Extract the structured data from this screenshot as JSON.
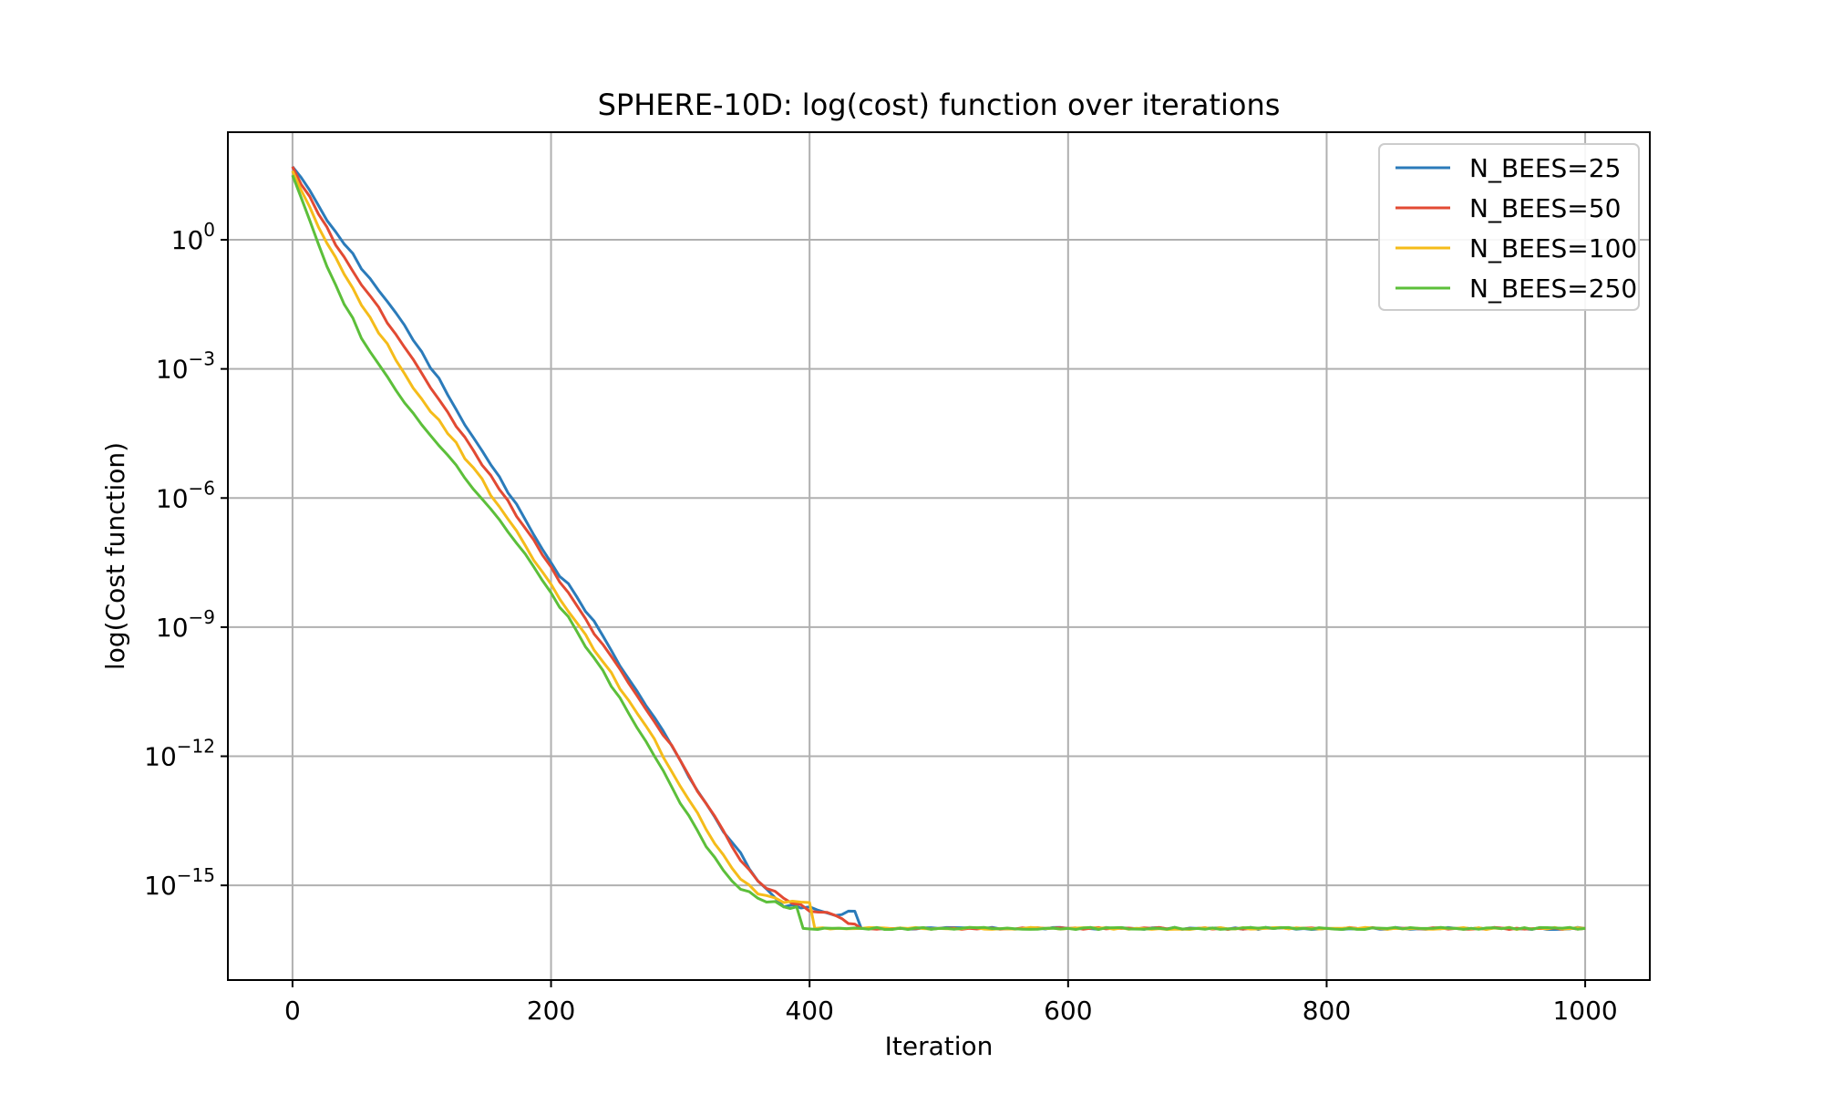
{
  "chart_data": {
    "type": "line",
    "title": "SPHERE-10D: log(cost) function over iterations",
    "xlabel": "Iteration",
    "ylabel": "log(Cost function)",
    "xlim": [
      -50,
      1050
    ],
    "ylim_log10": [
      -17.2,
      2.5
    ],
    "yscale": "log",
    "grid": true,
    "legend_position": "top-right",
    "x_ticks": [
      {
        "value": 0,
        "label": "0"
      },
      {
        "value": 200,
        "label": "200"
      },
      {
        "value": 400,
        "label": "400"
      },
      {
        "value": 600,
        "label": "600"
      },
      {
        "value": 800,
        "label": "800"
      },
      {
        "value": 1000,
        "label": "1000"
      }
    ],
    "y_ticks": [
      {
        "exp": 0,
        "base": "10",
        "sup": "0"
      },
      {
        "exp": -3,
        "base": "10",
        "sup": "−3"
      },
      {
        "exp": -6,
        "base": "10",
        "sup": "−6"
      },
      {
        "exp": -9,
        "base": "10",
        "sup": "−9"
      },
      {
        "exp": -12,
        "base": "10",
        "sup": "−12"
      },
      {
        "exp": -15,
        "base": "10",
        "sup": "−15"
      }
    ],
    "series": [
      {
        "name": "N_BEES=25",
        "color": "#2b7bba",
        "x": [
          0,
          20,
          40,
          60,
          80,
          100,
          120,
          140,
          160,
          180,
          200,
          220,
          240,
          260,
          280,
          300,
          320,
          340,
          360,
          380,
          400,
          420,
          435,
          440,
          500,
          600,
          700,
          800,
          900,
          1000
        ],
        "y_log10": [
          1.7,
          0.8,
          -0.1,
          -0.9,
          -1.7,
          -2.6,
          -3.6,
          -4.6,
          -5.5,
          -6.5,
          -7.5,
          -8.3,
          -9.2,
          -10.2,
          -11.1,
          -12.1,
          -13.1,
          -14.0,
          -14.9,
          -15.5,
          -15.5,
          -15.7,
          -15.6,
          -16.0,
          -16.0,
          -16.0,
          -16.0,
          -16.0,
          -16.0,
          -16.0
        ]
      },
      {
        "name": "N_BEES=50",
        "color": "#e24a33",
        "x": [
          0,
          20,
          40,
          60,
          80,
          100,
          120,
          140,
          160,
          180,
          200,
          220,
          240,
          260,
          280,
          300,
          320,
          340,
          360,
          380,
          400,
          420,
          435,
          440,
          500,
          600,
          700,
          800,
          900,
          1000
        ],
        "y_log10": [
          1.7,
          0.6,
          -0.4,
          -1.3,
          -2.2,
          -3.1,
          -4.0,
          -4.9,
          -5.8,
          -6.7,
          -7.6,
          -8.5,
          -9.4,
          -10.3,
          -11.2,
          -12.1,
          -13.1,
          -14.1,
          -14.9,
          -15.3,
          -15.6,
          -15.7,
          -15.9,
          -16.0,
          -16.0,
          -16.0,
          -16.0,
          -16.0,
          -16.0,
          -16.0
        ]
      },
      {
        "name": "N_BEES=100",
        "color": "#f5bc1a",
        "x": [
          0,
          20,
          40,
          60,
          80,
          100,
          120,
          140,
          160,
          180,
          200,
          220,
          240,
          260,
          280,
          300,
          320,
          340,
          360,
          380,
          400,
          404,
          440,
          500,
          600,
          700,
          800,
          900,
          1000
        ],
        "y_log10": [
          1.6,
          0.3,
          -0.8,
          -1.8,
          -2.8,
          -3.7,
          -4.5,
          -5.3,
          -6.2,
          -7.1,
          -8.0,
          -8.9,
          -9.8,
          -10.7,
          -11.6,
          -12.7,
          -13.7,
          -14.6,
          -15.2,
          -15.4,
          -15.4,
          -16.0,
          -16.0,
          -16.0,
          -16.0,
          -16.0,
          -16.0,
          -16.0,
          -16.0
        ]
      },
      {
        "name": "N_BEES=250",
        "color": "#5cbf3a",
        "x": [
          0,
          20,
          40,
          60,
          80,
          100,
          120,
          140,
          160,
          180,
          200,
          220,
          240,
          260,
          280,
          300,
          320,
          340,
          360,
          380,
          390,
          395,
          440,
          500,
          600,
          700,
          800,
          900,
          1000
        ],
        "y_log10": [
          1.5,
          -0.1,
          -1.5,
          -2.6,
          -3.5,
          -4.3,
          -5.0,
          -5.8,
          -6.5,
          -7.3,
          -8.2,
          -9.1,
          -10.0,
          -11.0,
          -12.0,
          -13.1,
          -14.1,
          -14.9,
          -15.3,
          -15.5,
          -15.5,
          -16.0,
          -16.0,
          -16.0,
          -16.0,
          -16.0,
          -16.0,
          -16.0,
          -16.0
        ]
      }
    ]
  }
}
